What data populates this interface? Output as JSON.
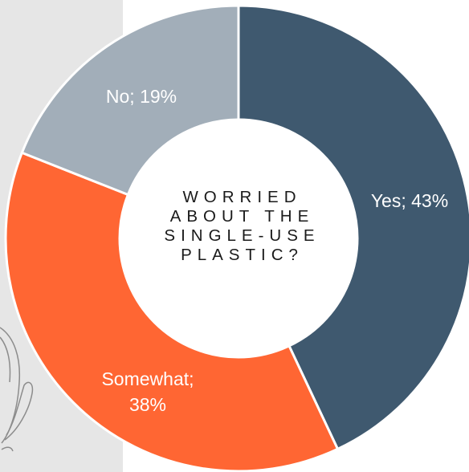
{
  "colors": {
    "panel_background": "#e6e6e6",
    "yes": "#3f596f",
    "somewhat": "#ff6633",
    "no": "#a2aeb9",
    "separator": "#ffffff",
    "center": "#ffffff",
    "sketch_line": "#8c8c8c"
  },
  "chart_data": {
    "type": "pie",
    "variant": "donut",
    "title_lines": [
      "WORRIED",
      "ABOUT THE",
      "SINGLE-USE",
      "PLASTIC?"
    ],
    "slices": [
      {
        "category": "Yes",
        "value": 43,
        "label_line1": "Yes; 43%",
        "label_line2": ""
      },
      {
        "category": "Somewhat",
        "value": 38,
        "label_line1": "Somewhat;",
        "label_line2": "38%"
      },
      {
        "category": "No",
        "value": 19,
        "label_line1": "No; 19%",
        "label_line2": ""
      }
    ],
    "start_angle": "12 o'clock",
    "direction": "clockwise",
    "legend": "none",
    "data_labels": "category; percent"
  }
}
